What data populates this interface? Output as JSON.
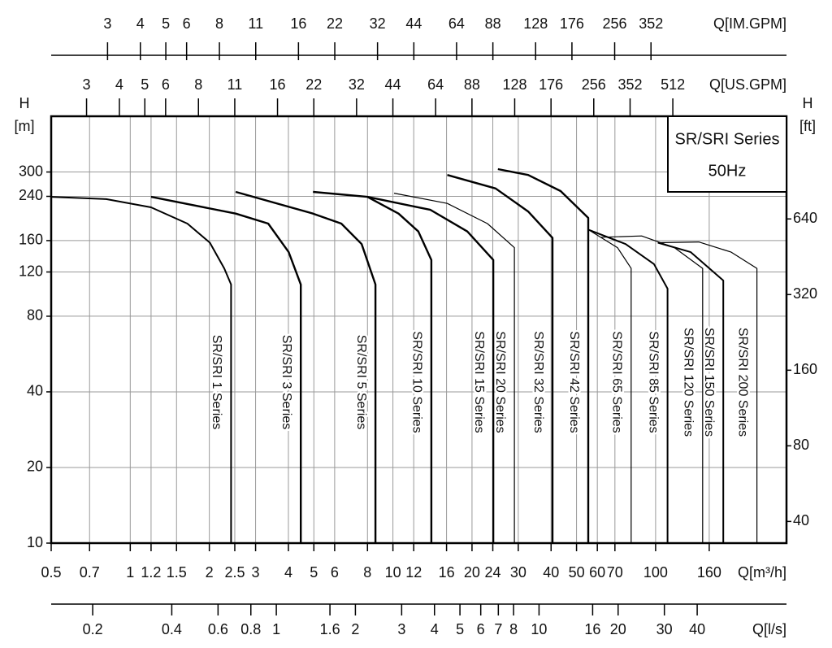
{
  "chart_data": {
    "type": "line",
    "x_scale": "log",
    "y_scale": "log",
    "grid": true,
    "xlabel": "Q[m³/h]",
    "ylabel": "H",
    "ylabel_unit": "[m]",
    "y2label": "H",
    "y2label_unit": "[ft]",
    "xlim": [
      0.5,
      315
    ],
    "xticks": [
      0.5,
      0.7,
      1,
      1.2,
      1.5,
      2,
      2.5,
      3,
      4,
      5,
      6,
      8,
      10,
      12,
      16,
      20,
      24,
      30,
      40,
      50,
      60,
      70,
      100,
      160
    ],
    "ylim": [
      10,
      500
    ],
    "yticks": [
      10,
      20,
      40,
      80,
      120,
      160,
      240,
      300
    ],
    "y2lim": [
      32.8,
      1640
    ],
    "y2ticks": [
      40,
      80,
      160,
      320,
      640
    ],
    "top_axes": [
      {
        "label": "Q[US.GPM]",
        "lim": [
          2.2,
          1387
        ],
        "ticks": [
          3,
          4,
          5,
          6,
          8,
          11,
          16,
          22,
          32,
          44,
          64,
          88,
          128,
          176,
          256,
          352,
          512
        ]
      },
      {
        "label": "Q[IM.GPM]",
        "lim": [
          1.83,
          1155
        ],
        "ticks": [
          3,
          4,
          5,
          6,
          8,
          11,
          16,
          22,
          32,
          44,
          64,
          88,
          128,
          176,
          256,
          352
        ]
      }
    ],
    "bottom_axis2": {
      "label": "Q[l/s]",
      "lim": [
        0.139,
        87.5
      ],
      "ticks": [
        0.2,
        0.4,
        0.6,
        0.8,
        1,
        1.6,
        2,
        3,
        4,
        5,
        6,
        7,
        8,
        10,
        16,
        20,
        30,
        40
      ]
    },
    "annotations": [
      "SR/SRI Series",
      "50Hz"
    ],
    "series": [
      {
        "name": "SR/SRI 1 Series",
        "color": "#000000",
        "line_width": 2,
        "x": [
          0.5,
          0.81,
          1.2,
          1.65,
          2.01,
          2.28,
          2.42,
          2.42
        ],
        "values": [
          239,
          234,
          217,
          187,
          157,
          124,
          107,
          10
        ]
      },
      {
        "name": "SR/SRI 3 Series",
        "color": "#000000",
        "line_width": 2.4,
        "x": [
          1.2,
          2.52,
          3.35,
          4.01,
          4.46,
          4.46
        ],
        "values": [
          239,
          205,
          187,
          144,
          107,
          10
        ]
      },
      {
        "name": "SR/SRI 5 Series",
        "color": "#000000",
        "line_width": 2.4,
        "x": [
          2.52,
          4.96,
          6.36,
          7.6,
          8.58,
          8.58
        ],
        "values": [
          250,
          205,
          187,
          155,
          107,
          10
        ]
      },
      {
        "name": "SR/SRI 10 Series",
        "color": "#000000",
        "line_width": 2.4,
        "x": [
          4.96,
          7.99,
          10.5,
          12.5,
          14,
          14
        ],
        "values": [
          250,
          239,
          205,
          174,
          134,
          10
        ]
      },
      {
        "name": "SR/SRI 15 Series",
        "color": "#000000",
        "line_width": 2.4,
        "x": [
          7.99,
          13.9,
          19.2,
          24.1,
          24.1
        ],
        "values": [
          239,
          212,
          174,
          134,
          10
        ]
      },
      {
        "name": "SR/SRI 20 Series",
        "color": "#000000",
        "line_width": 1.2,
        "x": [
          10.1,
          16.1,
          22.9,
          29,
          29
        ],
        "values": [
          247,
          225,
          187,
          150,
          10
        ]
      },
      {
        "name": "SR/SRI 32 Series",
        "color": "#000000",
        "line_width": 2.4,
        "x": [
          16.1,
          24.6,
          32.7,
          40.5,
          40.5
        ],
        "values": [
          292,
          258,
          209,
          164,
          10
        ]
      },
      {
        "name": "SR/SRI 42 Series",
        "color": "#000000",
        "line_width": 2.4,
        "x": [
          25.1,
          32.7,
          43.5,
          55.4,
          55.4
        ],
        "values": [
          308,
          292,
          252,
          197,
          10
        ]
      },
      {
        "name": "SR/SRI 65 Series",
        "color": "#000000",
        "line_width": 1.2,
        "x": [
          55.4,
          71.6,
          80.7,
          80.7
        ],
        "values": [
          177,
          150,
          124,
          10
        ]
      },
      {
        "name": "SR/SRI 85 Series",
        "color": "#000000",
        "line_width": 2,
        "x": [
          55.4,
          76.9,
          98.6,
          111,
          111
        ],
        "values": [
          177,
          155,
          129,
          103,
          10
        ]
      },
      {
        "name": "SR/SRI 120 Series",
        "color": "#000000",
        "line_width": 1.2,
        "x": [
          62.1,
          88.5,
          118,
          151,
          151
        ],
        "values": [
          165,
          167,
          150,
          124,
          10
        ]
      },
      {
        "name": "SR/SRI 150 Series",
        "color": "#000000",
        "line_width": 2,
        "x": [
          102,
          136,
          181,
          181
        ],
        "values": [
          157,
          144,
          111,
          10
        ]
      },
      {
        "name": "SR/SRI 200 Series",
        "color": "#000000",
        "line_width": 1.2,
        "x": [
          102,
          146,
          194,
          243,
          243
        ],
        "values": [
          157,
          158,
          144,
          124,
          10
        ]
      }
    ]
  }
}
